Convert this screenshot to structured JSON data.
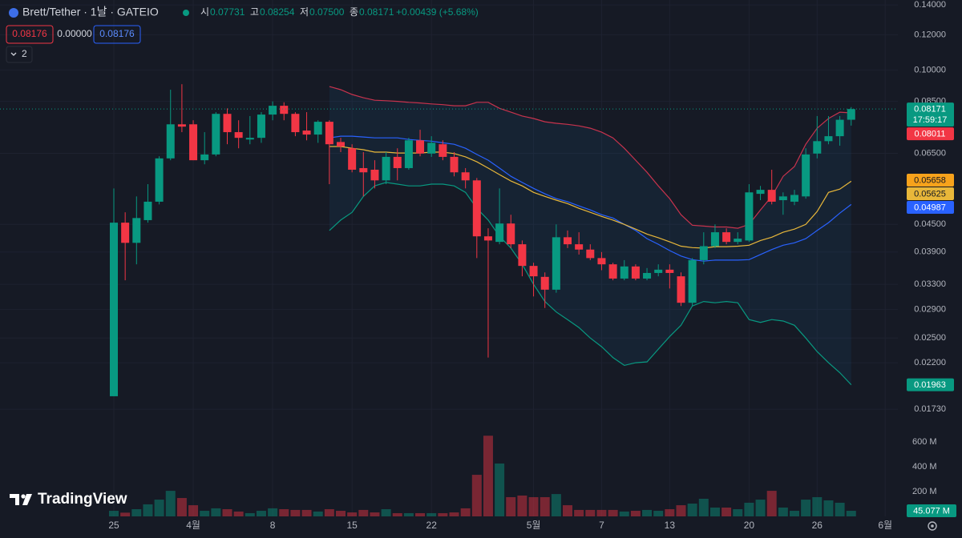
{
  "chart_data": {
    "type": "candlestick",
    "title": "Brett/Tether · 1날 · GATEIO",
    "header": {
      "ohlc": [
        {
          "label": "시",
          "value": "0.07731"
        },
        {
          "label": "고",
          "value": "0.08254"
        },
        {
          "label": "저",
          "value": "0.07500"
        },
        {
          "label": "종",
          "value": "0.08171"
        }
      ],
      "change": "+0.00439 (+5.68%)",
      "indicator_legend": [
        "0.08176",
        "0.00000",
        "0.08176"
      ],
      "collapsed_count": "2"
    },
    "brand": "TradingView",
    "countdown": "17:59:17",
    "categories": [
      "25",
      null,
      null,
      null,
      null,
      null,
      null,
      "4월",
      null,
      null,
      null,
      null,
      null,
      null,
      "8",
      null,
      null,
      null,
      null,
      null,
      null,
      "15",
      null,
      null,
      null,
      null,
      null,
      null,
      "22",
      null,
      null,
      null,
      null,
      null,
      null,
      null,
      null,
      "5월",
      null,
      null,
      null,
      null,
      null,
      "7",
      null,
      null,
      null,
      null,
      null,
      "13",
      null,
      null,
      null,
      null,
      null,
      null,
      "20",
      null,
      null,
      null,
      null,
      null,
      "26",
      null,
      null,
      null,
      null,
      null,
      "6월"
    ],
    "open": [
      0.0185,
      0.0454,
      0.0409,
      0.046,
      0.0506,
      0.0633,
      0.0755,
      0.0755,
      0.0627,
      0.0646,
      0.0797,
      0.0725,
      0.0698,
      0.0704,
      0.0794,
      0.0831,
      0.0797,
      0.0731,
      0.0716,
      0.0765,
      0.0689,
      0.0667,
      0.0602,
      0.0597,
      0.0565,
      0.0638,
      0.0602,
      0.0695,
      0.0649,
      0.0681,
      0.0638,
      0.0589,
      0.0565,
      0.0423,
      0.0411,
      0.0452,
      0.0406,
      0.0363,
      0.0343,
      0.0321,
      0.0421,
      0.0406,
      0.0395,
      0.0378,
      0.0366,
      0.034,
      0.0362,
      0.034,
      0.035,
      0.0356,
      0.0344,
      0.03,
      0.0374,
      0.0402,
      0.0432,
      0.0411,
      0.0414,
      0.0527,
      0.0538,
      0.051,
      0.0506,
      0.052,
      0.0649,
      0.0692,
      0.071,
      0.07731,
      null,
      null,
      null
    ],
    "high": [
      0.0542,
      0.0479,
      0.052,
      0.0554,
      0.064,
      0.0903,
      0.0929,
      0.0771,
      0.0725,
      0.0804,
      0.082,
      0.0771,
      0.0788,
      0.0804,
      0.085,
      0.0846,
      0.0804,
      0.0804,
      0.0771,
      0.0771,
      0.0704,
      0.0681,
      0.0654,
      0.0627,
      0.0654,
      0.0667,
      0.0704,
      0.0734,
      0.071,
      0.0695,
      0.0654,
      0.0602,
      0.0572,
      0.0441,
      0.0542,
      0.0473,
      0.0414,
      0.0369,
      0.0351,
      0.045,
      0.0436,
      0.0432,
      0.0406,
      0.039,
      0.0369,
      0.0374,
      0.0366,
      0.0359,
      0.0366,
      0.0366,
      0.0351,
      0.0378,
      0.0432,
      0.045,
      0.0441,
      0.0432,
      0.0554,
      0.0549,
      0.0597,
      0.0531,
      0.0538,
      0.0667,
      0.0788,
      0.0788,
      0.0788,
      0.08254,
      null,
      null,
      null
    ],
    "low": [
      0.0185,
      0.0337,
      0.0366,
      0.0454,
      0.0499,
      0.0627,
      0.0725,
      0.0627,
      0.0614,
      0.064,
      0.0681,
      0.0667,
      0.0681,
      0.0686,
      0.0771,
      0.0771,
      0.071,
      0.0695,
      0.0686,
      0.0554,
      0.0654,
      0.0589,
      0.052,
      0.0542,
      0.0554,
      0.0565,
      0.0597,
      0.064,
      0.0638,
      0.0627,
      0.0577,
      0.0542,
      0.0378,
      0.0226,
      0.0406,
      0.0398,
      0.0344,
      0.031,
      0.0292,
      0.0316,
      0.0398,
      0.0385,
      0.0374,
      0.0355,
      0.0337,
      0.0337,
      0.0337,
      0.0337,
      0.0344,
      0.0323,
      0.0295,
      0.0295,
      0.0366,
      0.0398,
      0.0406,
      0.0406,
      0.0411,
      0.051,
      0.0499,
      0.0473,
      0.0497,
      0.0514,
      0.0633,
      0.0681,
      0.0676,
      0.075,
      null,
      null,
      null
    ],
    "close": [
      0.0454,
      0.0409,
      0.0465,
      0.0506,
      0.0633,
      0.0755,
      0.0746,
      0.0627,
      0.0646,
      0.0797,
      0.0725,
      0.0704,
      0.0704,
      0.0794,
      0.0831,
      0.0797,
      0.0725,
      0.0716,
      0.0765,
      0.0681,
      0.0673,
      0.0597,
      0.0589,
      0.0565,
      0.0638,
      0.0602,
      0.0695,
      0.0649,
      0.0686,
      0.0638,
      0.0589,
      0.0565,
      0.0423,
      0.0414,
      0.0452,
      0.0406,
      0.0363,
      0.0344,
      0.0321,
      0.0421,
      0.0406,
      0.0395,
      0.0378,
      0.0366,
      0.034,
      0.0362,
      0.034,
      0.035,
      0.0356,
      0.035,
      0.03,
      0.0374,
      0.0402,
      0.0432,
      0.0411,
      0.0418,
      0.0531,
      0.0538,
      0.0506,
      0.052,
      0.0524,
      0.0646,
      0.0692,
      0.071,
      0.0773,
      0.08171,
      null,
      null,
      null
    ],
    "up_color": "#089981",
    "down_color": "#f23645",
    "log_scale": true,
    "grid": true,
    "ylim": [
      0.016,
      0.1436
    ],
    "yticks": [
      {
        "value": 0.14,
        "label": "0.14000"
      },
      {
        "value": 0.12,
        "label": "0.12000"
      },
      {
        "value": 0.1,
        "label": "0.10000"
      },
      {
        "value": 0.085,
        "label": "0.08500"
      },
      {
        "value": 0.065,
        "label": "0.06500"
      },
      {
        "value": 0.045,
        "label": "0.04500"
      },
      {
        "value": 0.039,
        "label": "0.03900"
      },
      {
        "value": 0.033,
        "label": "0.03300"
      },
      {
        "value": 0.029,
        "label": "0.02900"
      },
      {
        "value": 0.025,
        "label": "0.02500"
      },
      {
        "value": 0.022,
        "label": "0.02200"
      },
      {
        "value": 0.0173,
        "label": "0.01730"
      }
    ],
    "bollinger": {
      "fill": "#2196f3",
      "upper": {
        "color": "#c8334d",
        "values": [
          null,
          null,
          null,
          null,
          null,
          null,
          null,
          null,
          null,
          null,
          null,
          null,
          null,
          null,
          null,
          null,
          null,
          null,
          null,
          0.0918,
          0.0903,
          0.0881,
          0.0866,
          0.0855,
          0.0853,
          0.085,
          0.0846,
          0.0843,
          0.0839,
          0.0836,
          0.0831,
          0.0831,
          0.0846,
          0.0846,
          0.082,
          0.0804,
          0.0788,
          0.0778,
          0.0765,
          0.0759,
          0.0755,
          0.0749,
          0.074,
          0.0725,
          0.0704,
          0.0667,
          0.0627,
          0.0589,
          0.0549,
          0.0514,
          0.0473,
          0.0448,
          0.0446,
          0.0444,
          0.0444,
          0.0441,
          0.045,
          0.0485,
          0.052,
          0.0577,
          0.0607,
          0.0681,
          0.074,
          0.0778,
          0.0804,
          0.08011,
          null,
          null,
          null
        ]
      },
      "lower": {
        "color": "#089981",
        "values": [
          null,
          null,
          null,
          null,
          null,
          null,
          null,
          null,
          null,
          null,
          null,
          null,
          null,
          null,
          null,
          null,
          null,
          null,
          null,
          0.0436,
          0.046,
          0.0479,
          0.052,
          0.0549,
          0.0559,
          0.0554,
          0.0549,
          0.0549,
          0.0554,
          0.0554,
          0.0549,
          0.0531,
          0.0489,
          0.046,
          0.0423,
          0.0398,
          0.0366,
          0.033,
          0.0302,
          0.0286,
          0.0275,
          0.0264,
          0.025,
          0.0239,
          0.0226,
          0.0217,
          0.022,
          0.0221,
          0.0236,
          0.0252,
          0.0267,
          0.0295,
          0.0302,
          0.03,
          0.0302,
          0.03,
          0.0275,
          0.0271,
          0.0275,
          0.0273,
          0.0267,
          0.025,
          0.0233,
          0.022,
          0.0209,
          0.01963,
          null,
          null,
          null
        ]
      }
    },
    "moving_averages": [
      {
        "color": "#2962ff",
        "values": [
          null,
          null,
          null,
          null,
          null,
          null,
          null,
          null,
          null,
          null,
          null,
          null,
          null,
          null,
          null,
          null,
          null,
          null,
          null,
          0.0704,
          0.071,
          0.071,
          0.0707,
          0.0704,
          0.0704,
          0.0704,
          0.0698,
          0.0695,
          0.0692,
          0.0686,
          0.0681,
          0.0667,
          0.0646,
          0.0627,
          0.0602,
          0.0577,
          0.0559,
          0.0542,
          0.0527,
          0.0514,
          0.0506,
          0.0495,
          0.0485,
          0.0473,
          0.0465,
          0.045,
          0.0436,
          0.0418,
          0.0406,
          0.0393,
          0.0382,
          0.0375,
          0.0372,
          0.0374,
          0.0374,
          0.0374,
          0.0375,
          0.0385,
          0.0395,
          0.0404,
          0.0409,
          0.0418,
          0.0436,
          0.0454,
          0.0477,
          0.04987,
          null,
          null,
          null
        ]
      },
      {
        "color": "#e8b73a",
        "values": [
          null,
          null,
          null,
          null,
          null,
          null,
          null,
          null,
          null,
          null,
          null,
          null,
          null,
          null,
          null,
          null,
          null,
          null,
          null,
          0.0673,
          0.0673,
          0.0667,
          0.0662,
          0.0654,
          0.0654,
          0.0651,
          0.0651,
          0.0651,
          0.0654,
          0.0654,
          0.0649,
          0.0638,
          0.0622,
          0.0602,
          0.0582,
          0.0563,
          0.0549,
          0.0531,
          0.052,
          0.051,
          0.0501,
          0.0489,
          0.0479,
          0.0469,
          0.046,
          0.045,
          0.0439,
          0.0428,
          0.042,
          0.0411,
          0.0402,
          0.0399,
          0.0398,
          0.0401,
          0.0401,
          0.0402,
          0.0404,
          0.0414,
          0.0421,
          0.0432,
          0.0439,
          0.045,
          0.0481,
          0.0531,
          0.054,
          0.05625,
          null,
          null,
          null
        ]
      }
    ],
    "extra_price_labels": [
      {
        "value": 0.05658,
        "color": "#f7a21b"
      }
    ],
    "volume": {
      "values": [
        45,
        30,
        58,
        97,
        135,
        206,
        148,
        90,
        45,
        65,
        58,
        39,
        26,
        45,
        65,
        58,
        52,
        52,
        39,
        58,
        45,
        32,
        52,
        32,
        58,
        26,
        26,
        26,
        26,
        26,
        32,
        65,
        335,
        650,
        426,
        155,
        168,
        155,
        155,
        180,
        90,
        52,
        52,
        52,
        52,
        39,
        45,
        52,
        45,
        58,
        90,
        103,
        142,
        71,
        71,
        58,
        110,
        135,
        206,
        71,
        45,
        135,
        155,
        129,
        110,
        45.077,
        null,
        null,
        null
      ],
      "value_labels": [
        null,
        null,
        null,
        null,
        null,
        null,
        null,
        null,
        null,
        null,
        null,
        null,
        null,
        null,
        null,
        null,
        null,
        null,
        null,
        null,
        null,
        null,
        null,
        null,
        null,
        null,
        null,
        null,
        null,
        null,
        null,
        null,
        null,
        null,
        null,
        null,
        null,
        null,
        null,
        null,
        null,
        null,
        null,
        null,
        null,
        null,
        null,
        null,
        null,
        null,
        null,
        null,
        null,
        null,
        null,
        null,
        null,
        null,
        null,
        null,
        null,
        null,
        null,
        null,
        null,
        "45.077 M",
        null,
        null,
        null
      ],
      "ylim": [
        0,
        700
      ],
      "yticks": [
        {
          "value": 200,
          "label": "200 M"
        },
        {
          "value": 400,
          "label": "400 M"
        },
        {
          "value": 600,
          "label": "600 M"
        }
      ]
    }
  }
}
